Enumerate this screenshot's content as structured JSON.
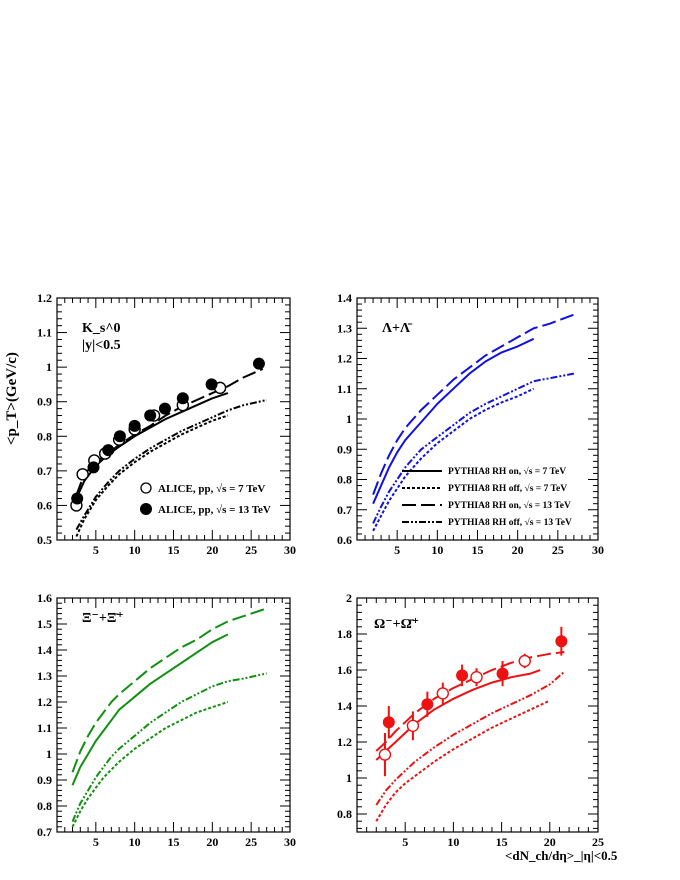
{
  "colors": {
    "black": "#000000",
    "blue": "#1010e0",
    "green": "#109010",
    "red": "#ee1111"
  },
  "axes": {
    "ylabel": "<p_T>(GeV/c)",
    "xlabel": "<dN_ch/dη>_|η|<0.5"
  },
  "chart_data": [
    {
      "type": "line",
      "panel": "K0s",
      "title_lines": [
        "K_s^0",
        "|y|<0.5"
      ],
      "xlim": [
        0,
        30
      ],
      "ylim": [
        0.5,
        1.2
      ],
      "xticks": [
        "5",
        "10",
        "15",
        "20",
        "25",
        "30"
      ],
      "yticks": [
        "0.5",
        "0.6",
        "0.7",
        "0.8",
        "0.9",
        "1",
        "1.1",
        "1.2"
      ],
      "color": "#000000",
      "legend": [
        "ALICE, pp,  √s = 7 TeV",
        "ALICE, pp,  √s = 13 TeV"
      ],
      "series": [
        {
          "style": "solid",
          "x": [
            2.5,
            3.5,
            5,
            6.5,
            8,
            10,
            12,
            14,
            16,
            18,
            20,
            22
          ],
          "y": [
            0.62,
            0.67,
            0.715,
            0.745,
            0.77,
            0.8,
            0.825,
            0.85,
            0.87,
            0.89,
            0.91,
            0.925
          ]
        },
        {
          "style": "dotted",
          "x": [
            2.5,
            3.5,
            5,
            6.5,
            8,
            10,
            12,
            14,
            16,
            18,
            20,
            22
          ],
          "y": [
            0.51,
            0.56,
            0.615,
            0.655,
            0.69,
            0.725,
            0.755,
            0.78,
            0.805,
            0.825,
            0.845,
            0.86
          ]
        },
        {
          "style": "dashed",
          "x": [
            2.5,
            3.5,
            5,
            6.5,
            8,
            10,
            12,
            14,
            16,
            18,
            20,
            22,
            24,
            26.5
          ],
          "y": [
            0.63,
            0.69,
            0.725,
            0.75,
            0.775,
            0.805,
            0.83,
            0.86,
            0.885,
            0.905,
            0.925,
            0.945,
            0.97,
            0.995
          ]
        },
        {
          "style": "dashdot",
          "x": [
            2.5,
            3.5,
            5,
            6.5,
            8,
            10,
            12,
            14,
            16,
            18,
            20,
            22,
            24,
            27
          ],
          "y": [
            0.53,
            0.57,
            0.625,
            0.665,
            0.7,
            0.735,
            0.765,
            0.79,
            0.815,
            0.835,
            0.855,
            0.875,
            0.89,
            0.905
          ]
        },
        {
          "style": "open-points",
          "x": [
            2.5,
            3.3,
            4.8,
            6.2,
            8,
            10,
            12.5,
            16.2,
            21
          ],
          "y": [
            0.6,
            0.69,
            0.73,
            0.75,
            0.79,
            0.82,
            0.86,
            0.89,
            0.94
          ]
        },
        {
          "style": "filled-points",
          "x": [
            2.6,
            4.7,
            6.6,
            8.1,
            10,
            12,
            13.9,
            16.2,
            19.9,
            26
          ],
          "y": [
            0.62,
            0.71,
            0.76,
            0.8,
            0.83,
            0.86,
            0.88,
            0.91,
            0.95,
            1.01
          ]
        }
      ]
    },
    {
      "type": "line",
      "panel": "Lambda",
      "title": "Λ+Λ̄",
      "xlim": [
        0,
        30
      ],
      "ylim": [
        0.6,
        1.4
      ],
      "xticks": [
        "5",
        "10",
        "15",
        "20",
        "25",
        "30"
      ],
      "yticks": [
        "0.6",
        "0.7",
        "0.8",
        "0.9",
        "1",
        "1.1",
        "1.2",
        "1.3",
        "1.4"
      ],
      "color": "#1010e0",
      "legend": [
        "PYTHIA8 RH on,  √s = 7 TeV",
        "PYTHIA8 RH off,  √s = 7 TeV",
        "PYTHIA8 RH on,  √s = 13 TeV",
        "PYTHIA8 RH off,  √s = 13 TeV"
      ],
      "series": [
        {
          "style": "solid",
          "x": [
            2,
            3,
            4,
            5,
            6,
            7,
            8,
            10,
            12,
            14,
            16,
            18,
            20,
            22
          ],
          "y": [
            0.72,
            0.78,
            0.84,
            0.89,
            0.93,
            0.96,
            0.99,
            1.05,
            1.1,
            1.15,
            1.19,
            1.22,
            1.24,
            1.265
          ]
        },
        {
          "style": "dotted",
          "x": [
            2,
            3,
            4,
            5,
            6,
            7,
            8,
            10,
            12,
            14,
            16,
            18,
            20,
            22
          ],
          "y": [
            0.63,
            0.68,
            0.73,
            0.77,
            0.81,
            0.84,
            0.87,
            0.92,
            0.96,
            1.0,
            1.03,
            1.055,
            1.075,
            1.1
          ]
        },
        {
          "style": "dashed",
          "x": [
            2,
            3,
            4,
            5,
            6,
            7,
            8,
            10,
            12,
            14,
            16,
            18,
            20,
            22,
            24,
            27
          ],
          "y": [
            0.75,
            0.82,
            0.88,
            0.93,
            0.97,
            1.0,
            1.03,
            1.08,
            1.13,
            1.17,
            1.21,
            1.24,
            1.27,
            1.3,
            1.315,
            1.345
          ]
        },
        {
          "style": "dashdot",
          "x": [
            2,
            3,
            4,
            5,
            6,
            7,
            8,
            10,
            12,
            14,
            16,
            18,
            20,
            22,
            24,
            27
          ],
          "y": [
            0.655,
            0.71,
            0.76,
            0.8,
            0.84,
            0.87,
            0.9,
            0.94,
            0.98,
            1.02,
            1.05,
            1.075,
            1.1,
            1.125,
            1.135,
            1.15
          ]
        }
      ]
    },
    {
      "type": "line",
      "panel": "Xi",
      "title": "Ξ⁻+Ξ̄⁺",
      "xlim": [
        0,
        30
      ],
      "ylim": [
        0.7,
        1.6
      ],
      "xticks": [
        "5",
        "10",
        "15",
        "20",
        "25",
        "30"
      ],
      "yticks": [
        "0.7",
        "0.8",
        "0.9",
        "1",
        "1.1",
        "1.2",
        "1.3",
        "1.4",
        "1.5",
        "1.6"
      ],
      "color": "#109010",
      "series": [
        {
          "style": "solid",
          "x": [
            2,
            3,
            4,
            5,
            6,
            7,
            8,
            10,
            12,
            14,
            16,
            18,
            20,
            22
          ],
          "y": [
            0.88,
            0.95,
            1.0,
            1.05,
            1.09,
            1.13,
            1.17,
            1.22,
            1.27,
            1.31,
            1.35,
            1.39,
            1.43,
            1.46
          ]
        },
        {
          "style": "dotted",
          "x": [
            2,
            3,
            4,
            5,
            6,
            7,
            8,
            10,
            12,
            14,
            16,
            18,
            20,
            22
          ],
          "y": [
            0.72,
            0.78,
            0.83,
            0.87,
            0.91,
            0.94,
            0.97,
            1.02,
            1.06,
            1.1,
            1.13,
            1.16,
            1.18,
            1.2
          ]
        },
        {
          "style": "dashed",
          "x": [
            2,
            3,
            4,
            5,
            6,
            7,
            8,
            10,
            12,
            14,
            16,
            18,
            20,
            22,
            24,
            27
          ],
          "y": [
            0.93,
            1.01,
            1.07,
            1.12,
            1.16,
            1.2,
            1.23,
            1.28,
            1.33,
            1.37,
            1.41,
            1.44,
            1.48,
            1.51,
            1.53,
            1.56
          ]
        },
        {
          "style": "dashdot",
          "x": [
            2,
            3,
            4,
            5,
            6,
            7,
            8,
            10,
            12,
            14,
            16,
            18,
            20,
            22,
            24,
            27
          ],
          "y": [
            0.74,
            0.81,
            0.86,
            0.91,
            0.95,
            0.99,
            1.02,
            1.07,
            1.12,
            1.16,
            1.2,
            1.23,
            1.26,
            1.28,
            1.29,
            1.31
          ]
        }
      ]
    },
    {
      "type": "line",
      "panel": "Omega",
      "title": "Ω⁻+Ω̄⁺",
      "xlim": [
        0,
        25
      ],
      "ylim": [
        0.7,
        2.0
      ],
      "xticks": [
        "5",
        "10",
        "15",
        "20",
        "25"
      ],
      "yticks": [
        "0.8",
        "1",
        "1.2",
        "1.4",
        "1.6",
        "1.8",
        "2"
      ],
      "color": "#ee1111",
      "series": [
        {
          "style": "solid",
          "x": [
            2,
            3,
            4,
            5,
            6,
            7,
            8,
            10,
            12,
            14,
            16,
            18,
            19
          ],
          "y": [
            1.1,
            1.15,
            1.2,
            1.25,
            1.3,
            1.34,
            1.38,
            1.44,
            1.49,
            1.53,
            1.56,
            1.58,
            1.6
          ]
        },
        {
          "style": "dotted",
          "x": [
            2,
            3,
            4,
            5,
            6,
            7,
            8,
            10,
            12,
            14,
            16,
            18,
            20
          ],
          "y": [
            0.76,
            0.85,
            0.92,
            0.97,
            1.01,
            1.05,
            1.09,
            1.16,
            1.22,
            1.28,
            1.33,
            1.38,
            1.43
          ]
        },
        {
          "style": "dashed",
          "x": [
            2,
            3,
            4,
            5,
            6,
            7,
            8,
            10,
            12,
            14,
            16,
            18,
            20,
            21.5
          ],
          "y": [
            1.15,
            1.2,
            1.26,
            1.31,
            1.36,
            1.4,
            1.44,
            1.5,
            1.55,
            1.6,
            1.64,
            1.67,
            1.69,
            1.7
          ]
        },
        {
          "style": "dashdot",
          "x": [
            2,
            3,
            4,
            5,
            6,
            7,
            8,
            10,
            12,
            14,
            16,
            18,
            20,
            21.5
          ],
          "y": [
            0.85,
            0.93,
            0.99,
            1.04,
            1.09,
            1.13,
            1.17,
            1.24,
            1.3,
            1.36,
            1.41,
            1.46,
            1.52,
            1.59
          ]
        },
        {
          "style": "open-points",
          "x": [
            2.9,
            5.8,
            8.9,
            12.4,
            17.4
          ],
          "y": [
            1.13,
            1.29,
            1.47,
            1.56,
            1.65
          ],
          "err": [
            0.12,
            0.08,
            0.06,
            0.05,
            0.04
          ]
        },
        {
          "style": "filled-points",
          "x": [
            3.3,
            7.3,
            10.9,
            15.1,
            21.2
          ],
          "y": [
            1.31,
            1.41,
            1.57,
            1.58,
            1.76
          ],
          "err": [
            0.09,
            0.07,
            0.06,
            0.07,
            0.08
          ]
        }
      ]
    }
  ]
}
